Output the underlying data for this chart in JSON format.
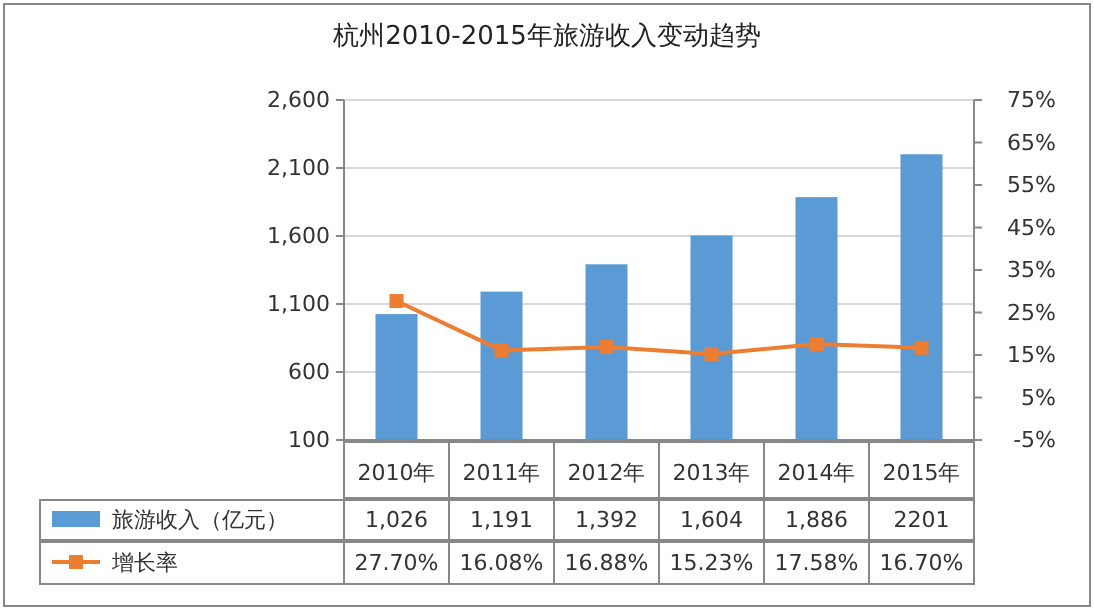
{
  "chart_data": {
    "type": "bar",
    "title": "杭州2010-2015年旅游收入变动趋势",
    "categories": [
      "2010年",
      "2011年",
      "2012年",
      "2013年",
      "2014年",
      "2015年"
    ],
    "series": [
      {
        "name": "旅游收入（亿元）",
        "type": "bar",
        "color": "#5b9bd5",
        "values": [
          1026,
          1191,
          1392,
          1604,
          1886,
          2201
        ],
        "value_labels": [
          "1,026",
          "1,191",
          "1,392",
          "1,604",
          "1,886",
          "2201"
        ]
      },
      {
        "name": "增长率",
        "type": "line",
        "axis": "y2",
        "color": "#ed7d31",
        "marker": "square",
        "values": [
          27.7,
          16.08,
          16.88,
          15.23,
          17.58,
          16.7
        ],
        "value_labels": [
          "27.70%",
          "16.08%",
          "16.88%",
          "15.23%",
          "17.58%",
          "16.70%"
        ]
      }
    ],
    "ylim": [
      100,
      2600
    ],
    "yticks": [
      {
        "value": 100,
        "label": "100"
      },
      {
        "value": 600,
        "label": "600"
      },
      {
        "value": 1100,
        "label": "1,100"
      },
      {
        "value": 1600,
        "label": "1,600"
      },
      {
        "value": 2100,
        "label": "2,100"
      },
      {
        "value": 2600,
        "label": "2,600"
      }
    ],
    "y2lim": [
      -5,
      75
    ],
    "y2ticks": [
      {
        "value": -5,
        "label": "-5%"
      },
      {
        "value": 5,
        "label": "5%"
      },
      {
        "value": 15,
        "label": "15%"
      },
      {
        "value": 25,
        "label": "25%"
      },
      {
        "value": 35,
        "label": "35%"
      },
      {
        "value": 45,
        "label": "45%"
      },
      {
        "value": 55,
        "label": "55%"
      },
      {
        "value": 65,
        "label": "65%"
      },
      {
        "value": 75,
        "label": "75%"
      }
    ],
    "grid": "y",
    "legend": "bottom left"
  }
}
